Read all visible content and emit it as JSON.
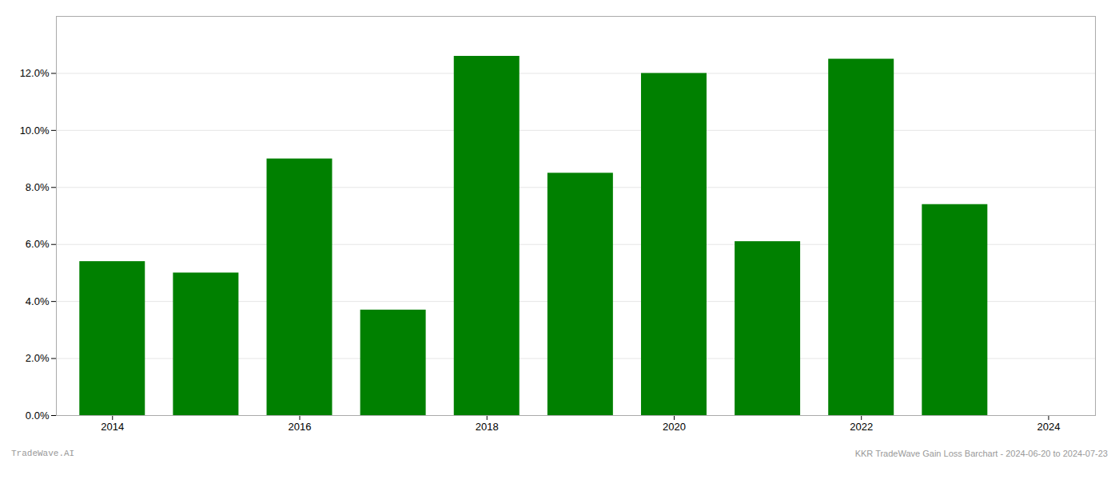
{
  "chart_data": {
    "type": "bar",
    "x": [
      2014,
      2015,
      2016,
      2017,
      2018,
      2019,
      2020,
      2021,
      2022,
      2023
    ],
    "values": [
      0.054,
      0.05,
      0.09,
      0.037,
      0.126,
      0.085,
      0.12,
      0.061,
      0.125,
      0.074
    ],
    "color": "#008000",
    "xlim": [
      2013.4,
      2024.5
    ],
    "xticks": [
      2014,
      2016,
      2018,
      2020,
      2022,
      2024
    ],
    "ylim": [
      0,
      0.14
    ],
    "yticks": [
      {
        "value": 0.0,
        "label": "0.0%"
      },
      {
        "value": 0.02,
        "label": "2.0%"
      },
      {
        "value": 0.04,
        "label": "4.0%"
      },
      {
        "value": 0.06,
        "label": "6.0%"
      },
      {
        "value": 0.08,
        "label": "8.0%"
      },
      {
        "value": 0.1,
        "label": "10.0%"
      },
      {
        "value": 0.12,
        "label": "12.0%"
      }
    ],
    "grid": true,
    "annotations": [
      "TradeWave.AI",
      "KKR TradeWave Gain Loss Barchart - 2024-06-20 to 2024-07-23"
    ]
  }
}
